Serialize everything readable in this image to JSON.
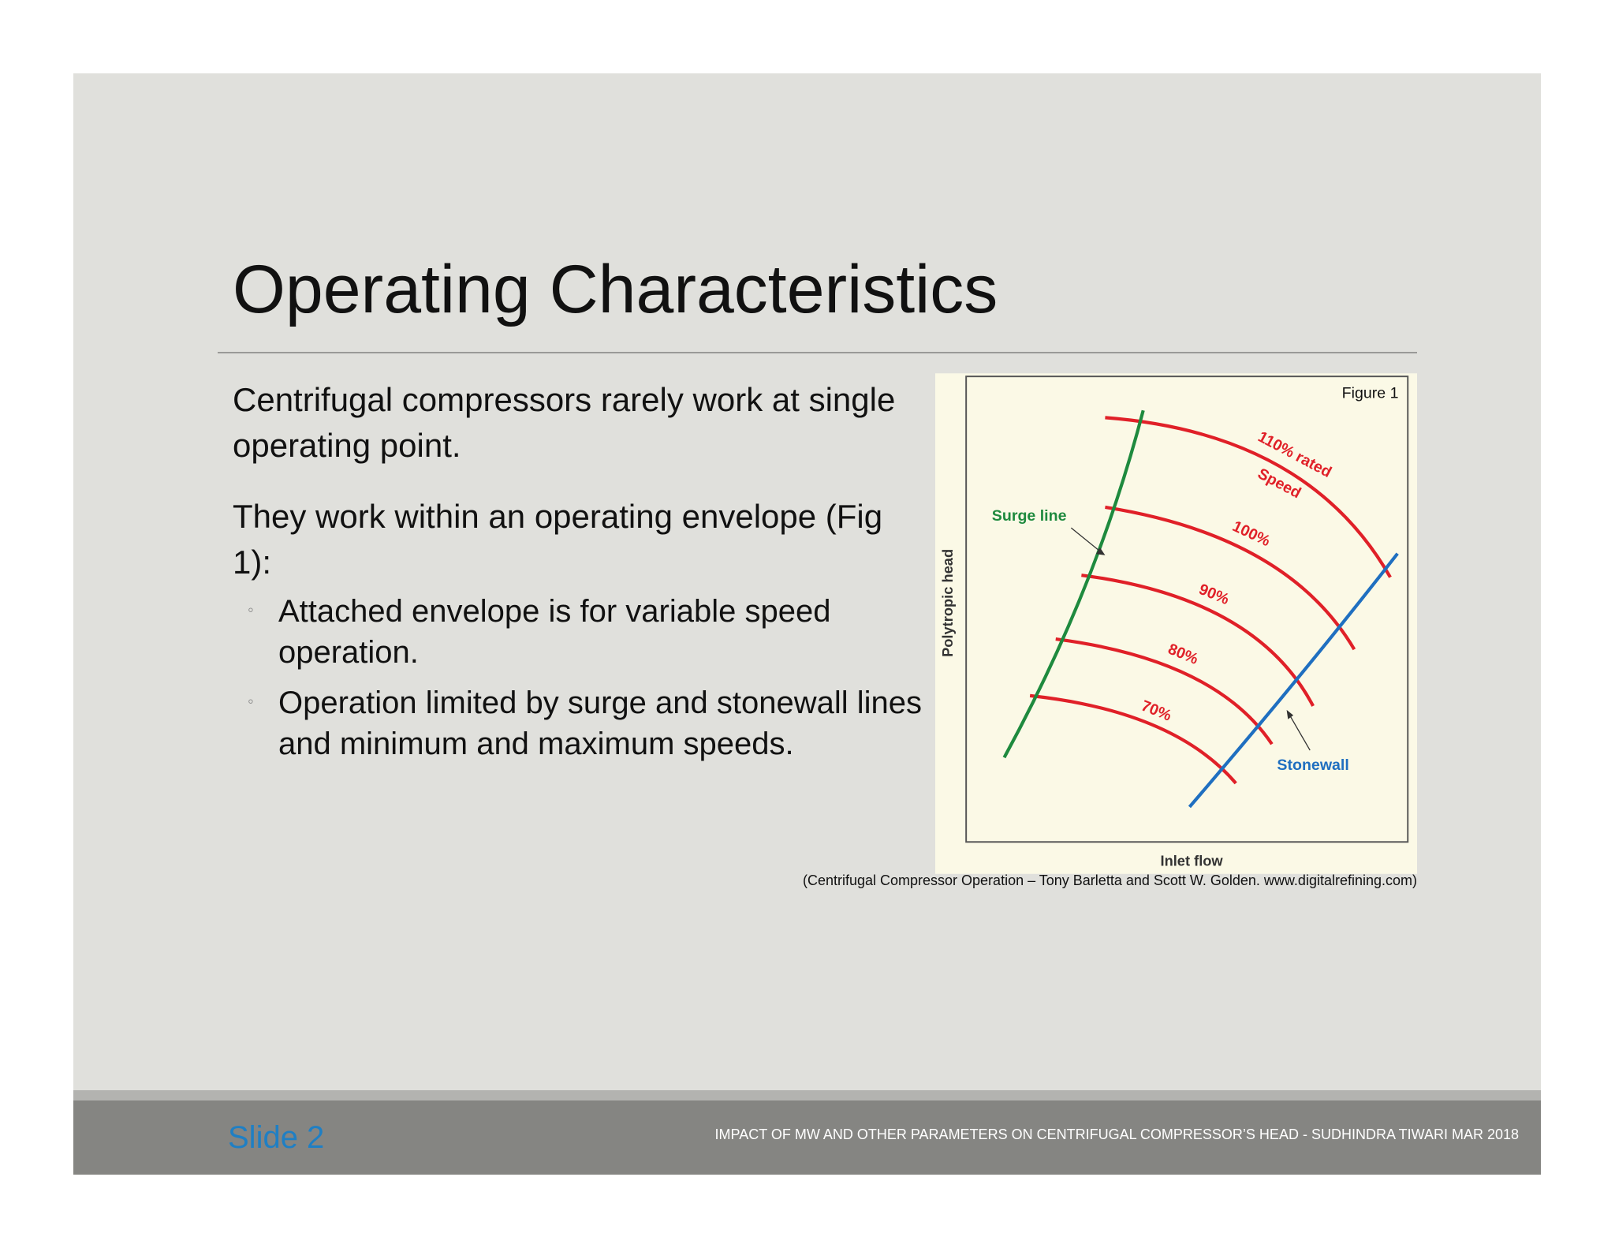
{
  "header": {
    "title": "Operating Characteristics"
  },
  "body": {
    "paragraphs": [
      "Centrifugal compressors rarely work at single operating point.",
      "They work within an operating envelope (Fig 1):"
    ],
    "bullets": [
      "Attached envelope is for variable speed operation.",
      "Operation limited by surge and stonewall lines and minimum and maximum speeds."
    ]
  },
  "figure": {
    "label": "Figure 1",
    "y_axis": "Polytropic head",
    "x_axis": "Inlet flow",
    "surge": "Surge line",
    "stonewall": "Stonewall",
    "speeds": [
      "110% rated",
      "Speed",
      "100%",
      "90%",
      "80%",
      "70%"
    ]
  },
  "citation": "(Centrifugal Compressor Operation – Tony Barletta and Scott W. Golden. www.digitalrefining.com)",
  "footer": {
    "slide": "Slide 2",
    "text": "IMPACT OF MW AND OTHER PARAMETERS ON CENTRIFUGAL COMPRESSOR’S HEAD - SUDHINDRA TIWARI MAR 2018"
  }
}
